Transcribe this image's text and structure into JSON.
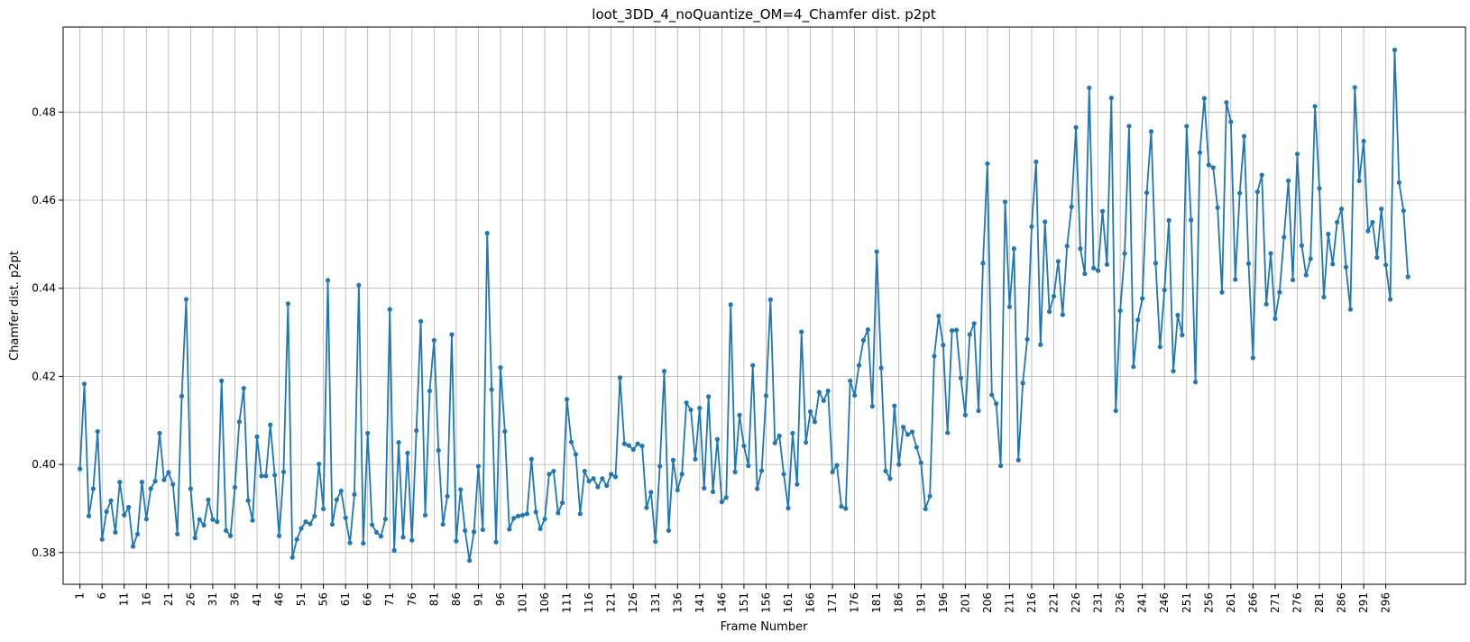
{
  "chart_data": {
    "type": "line",
    "title": "loot_3DD_4_noQuantize_OM=4_Chamfer dist. p2pt",
    "xlabel": "Frame Number",
    "ylabel": "Chamfer dist. p2pt",
    "xlim": [
      -2.8,
      314
    ],
    "ylim": [
      0.3728,
      0.4993
    ],
    "x_ticks": [
      1,
      6,
      11,
      16,
      21,
      26,
      31,
      36,
      41,
      46,
      51,
      56,
      61,
      66,
      71,
      76,
      81,
      86,
      91,
      96,
      101,
      106,
      111,
      116,
      121,
      126,
      131,
      136,
      141,
      146,
      151,
      156,
      161,
      166,
      171,
      176,
      181,
      186,
      191,
      196,
      201,
      206,
      211,
      216,
      221,
      226,
      231,
      236,
      241,
      246,
      251,
      256,
      261,
      266,
      271,
      276,
      281,
      286,
      291,
      296
    ],
    "y_ticks": [
      0.38,
      0.4,
      0.42,
      0.44,
      0.46,
      0.48
    ],
    "y_tick_labels": [
      "0.38",
      "0.40",
      "0.42",
      "0.44",
      "0.46",
      "0.48"
    ],
    "grid": true,
    "marker": "circle",
    "color": "#1f77b4",
    "series": [
      {
        "x_start": 1,
        "values": [
          0.399,
          0.4183,
          0.3883,
          0.3945,
          0.4075,
          0.383,
          0.3893,
          0.3918,
          0.3846,
          0.396,
          0.3885,
          0.3903,
          0.3814,
          0.3842,
          0.396,
          0.3876,
          0.3945,
          0.3962,
          0.4071,
          0.3965,
          0.3982,
          0.3955,
          0.3842,
          0.4155,
          0.4375,
          0.3945,
          0.3833,
          0.3875,
          0.3862,
          0.392,
          0.3875,
          0.387,
          0.419,
          0.385,
          0.3838,
          0.3948,
          0.4097,
          0.4173,
          0.3918,
          0.3873,
          0.4063,
          0.3974,
          0.3974,
          0.409,
          0.3976,
          0.3838,
          0.3983,
          0.4365,
          0.3789,
          0.383,
          0.3855,
          0.387,
          0.3865,
          0.3883,
          0.4001,
          0.3899,
          0.4418,
          0.3864,
          0.392,
          0.394,
          0.3879,
          0.3822,
          0.3932,
          0.4407,
          0.3821,
          0.4071,
          0.3863,
          0.3846,
          0.3837,
          0.3876,
          0.4352,
          0.3805,
          0.405,
          0.3835,
          0.4026,
          0.3828,
          0.4077,
          0.4325,
          0.3885,
          0.4167,
          0.4282,
          0.4032,
          0.3864,
          0.3928,
          0.4295,
          0.3826,
          0.3943,
          0.385,
          0.3782,
          0.3847,
          0.3996,
          0.3852,
          0.4525,
          0.417,
          0.3824,
          0.422,
          0.4075,
          0.3853,
          0.3878,
          0.3883,
          0.3885,
          0.3888,
          0.4012,
          0.3892,
          0.3854,
          0.3876,
          0.3978,
          0.3985,
          0.389,
          0.3913,
          0.4148,
          0.4051,
          0.4023,
          0.3888,
          0.3985,
          0.3962,
          0.3968,
          0.3949,
          0.3968,
          0.3952,
          0.3978,
          0.3972,
          0.4197,
          0.4047,
          0.4043,
          0.4034,
          0.4047,
          0.4042,
          0.3902,
          0.3937,
          0.3825,
          0.3996,
          0.4212,
          0.385,
          0.401,
          0.3942,
          0.3978,
          0.414,
          0.4124,
          0.4012,
          0.4128,
          0.3946,
          0.4154,
          0.3938,
          0.4057,
          0.3915,
          0.3925,
          0.4363,
          0.3983,
          0.4112,
          0.4042,
          0.3997,
          0.4225,
          0.3945,
          0.3986,
          0.4156,
          0.4374,
          0.4049,
          0.4065,
          0.3978,
          0.3901,
          0.4071,
          0.3955,
          0.4301,
          0.405,
          0.412,
          0.4097,
          0.4164,
          0.4145,
          0.4167,
          0.3983,
          0.3998,
          0.3905,
          0.39,
          0.419,
          0.4157,
          0.4225,
          0.4282,
          0.4306,
          0.4132,
          0.4483,
          0.4219,
          0.3985,
          0.3968,
          0.4133,
          0.4,
          0.4085,
          0.4068,
          0.4074,
          0.4039,
          0.4004,
          0.3899,
          0.3928,
          0.4246,
          0.4337,
          0.4271,
          0.4072,
          0.4304,
          0.4305,
          0.4196,
          0.4112,
          0.4295,
          0.432,
          0.4122,
          0.4457,
          0.4683,
          0.4158,
          0.4138,
          0.3997,
          0.4596,
          0.4358,
          0.449,
          0.401,
          0.4185,
          0.4284,
          0.454,
          0.4687,
          0.4272,
          0.4551,
          0.4347,
          0.4382,
          0.4461,
          0.434,
          0.4496,
          0.4585,
          0.4765,
          0.449,
          0.4433,
          0.4855,
          0.4446,
          0.444,
          0.4575,
          0.4454,
          0.4832,
          0.4122,
          0.4349,
          0.4479,
          0.4768,
          0.4222,
          0.4328,
          0.4377,
          0.4617,
          0.4756,
          0.4457,
          0.4267,
          0.4396,
          0.4554,
          0.4212,
          0.4339,
          0.4294,
          0.4768,
          0.4555,
          0.4187,
          0.4708,
          0.4831,
          0.468,
          0.4674,
          0.4583,
          0.4391,
          0.4822,
          0.4778,
          0.442,
          0.4616,
          0.4745,
          0.4456,
          0.4242,
          0.4619,
          0.4657,
          0.4364,
          0.4479,
          0.4331,
          0.4391,
          0.4516,
          0.4644,
          0.4419,
          0.4705,
          0.4497,
          0.443,
          0.4467,
          0.4813,
          0.4627,
          0.438,
          0.4523,
          0.4455,
          0.455,
          0.458,
          0.4448,
          0.4352,
          0.4856,
          0.4644,
          0.4734,
          0.453,
          0.455,
          0.447,
          0.458,
          0.4453,
          0.4375,
          0.4941,
          0.464,
          0.4576,
          0.4426
        ]
      }
    ]
  }
}
